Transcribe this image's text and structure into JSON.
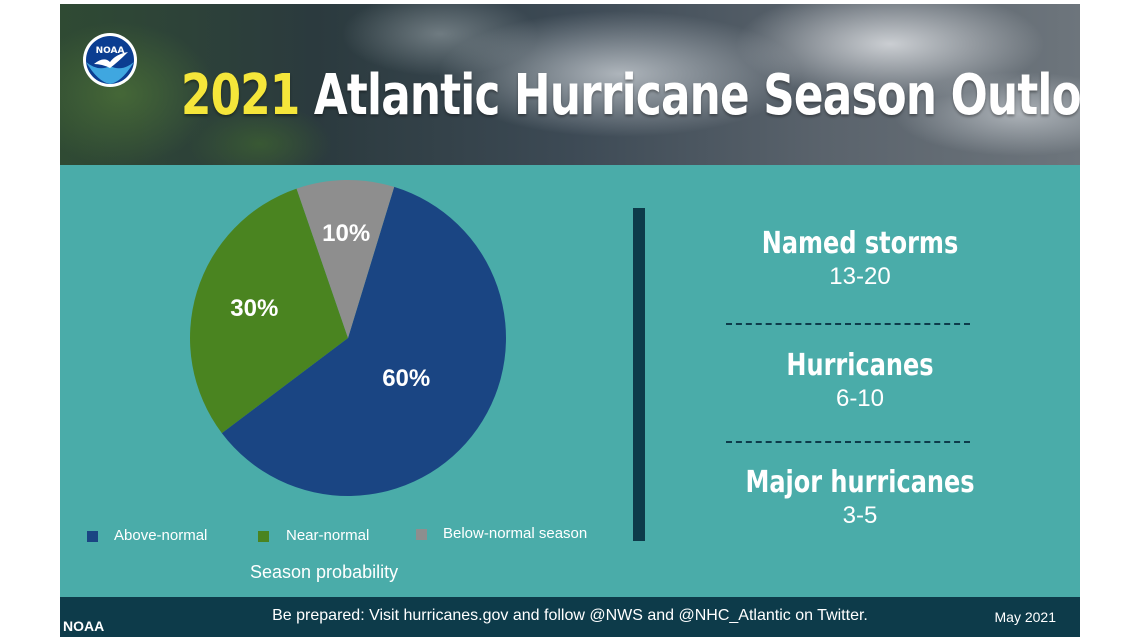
{
  "header": {
    "title_year": "2021",
    "title_rest": " Atlantic Hurricane Season Outlook",
    "logo_text": "NOAA"
  },
  "colors": {
    "background": "#4aaca9",
    "above_normal": "#1a4583",
    "near_normal": "#4a8420",
    "below_normal": "#8e8e8e",
    "dark_accent": "#0d3b4a",
    "title_year": "#f5e63a"
  },
  "chart_data": {
    "type": "pie",
    "title": "",
    "categories": [
      "Above-normal",
      "Near-normal",
      "Below-normal season"
    ],
    "values": [
      60,
      30,
      10
    ],
    "labels": [
      "60%",
      "30%",
      "10%"
    ],
    "caption": "Season probability",
    "legend_position": "bottom"
  },
  "stats": [
    {
      "label": "Named storms",
      "value": "13-20"
    },
    {
      "label": "Hurricanes",
      "value": "6-10"
    },
    {
      "label": "Major hurricanes",
      "value": "3-5"
    }
  ],
  "footer": {
    "org": "NOAA",
    "message": "Be prepared: Visit hurricanes.gov and follow @NWS and @NHC_Atlantic on Twitter.",
    "date": "May 2021"
  }
}
